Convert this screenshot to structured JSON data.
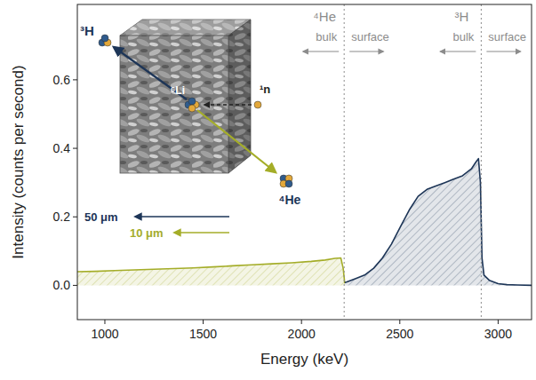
{
  "chart_data": {
    "type": "area",
    "x_label": "Energy (keV)",
    "y_label": "Intensity (counts per second)",
    "xlim": [
      860,
      3170
    ],
    "ylim": [
      -0.1,
      0.82
    ],
    "xticks": [
      1000,
      1500,
      2000,
      2500,
      3000
    ],
    "yticks": [
      {
        "value": 0,
        "label": "0.0"
      },
      0.2,
      0.4,
      0.6
    ],
    "grid": false,
    "series": [
      {
        "color": "#a4ad28",
        "x": [
          860,
          950,
          1050,
          1150,
          1250,
          1350,
          1450,
          1550,
          1650,
          1750,
          1850,
          1950,
          2050,
          2120,
          2170,
          2200,
          2212,
          2220
        ],
        "values": [
          0.04,
          0.041,
          0.043,
          0.045,
          0.047,
          0.049,
          0.051,
          0.054,
          0.057,
          0.06,
          0.063,
          0.066,
          0.07,
          0.074,
          0.079,
          0.08,
          0.05,
          0.006
        ]
      },
      {
        "color": "#1d3557",
        "x": [
          2220,
          2231,
          2276,
          2321,
          2367,
          2412,
          2457,
          2502,
          2548,
          2593,
          2638,
          2683,
          2729,
          2774,
          2819,
          2864,
          2887,
          2900,
          2910,
          2918,
          2928,
          2955,
          3000,
          3045,
          3100,
          3170
        ],
        "values": [
          0.008,
          0.01,
          0.02,
          0.03,
          0.05,
          0.08,
          0.12,
          0.17,
          0.22,
          0.26,
          0.28,
          0.29,
          0.3,
          0.31,
          0.32,
          0.34,
          0.36,
          0.37,
          0.3,
          0.08,
          0.03,
          0.015,
          0.005,
          0.002,
          0.001,
          0.0
        ]
      }
    ],
    "regions": [
      {
        "label": "⁴He",
        "x": 2217,
        "left": "bulk",
        "right": "surface"
      },
      {
        "label": "³H",
        "x": 2914,
        "left": "bulk",
        "right": "surface"
      }
    ],
    "inset": {
      "particles": [
        "³H",
        "⁶Li",
        "¹n",
        "⁴He"
      ],
      "ranges": [
        "50 μm",
        "10 μm"
      ]
    }
  }
}
